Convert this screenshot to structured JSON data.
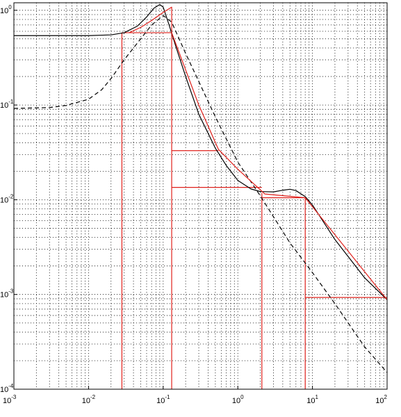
{
  "chart_data": {
    "type": "line",
    "title": "",
    "xlabel": "",
    "ylabel": "",
    "xscale": "log",
    "yscale": "log",
    "xlim": [
      0.001,
      100
    ],
    "ylim": [
      0.0001,
      1.2
    ],
    "grid": "on (dotted, major and minor)",
    "legend": "none",
    "x_ticks": [
      {
        "base": "10",
        "exp": "-3",
        "value": 0.001
      },
      {
        "base": "10",
        "exp": "-2",
        "value": 0.01
      },
      {
        "base": "10",
        "exp": "-1",
        "value": 0.1
      },
      {
        "base": "10",
        "exp": "0",
        "value": 1
      },
      {
        "base": "10",
        "exp": "1",
        "value": 10
      },
      {
        "base": "10",
        "exp": "2",
        "value": 100
      }
    ],
    "y_ticks": [
      {
        "base": "10",
        "exp": "0",
        "value": 1
      },
      {
        "base": "10",
        "exp": "-1",
        "value": 0.1
      },
      {
        "base": "10",
        "exp": "-2",
        "value": 0.01
      },
      {
        "base": "10",
        "exp": "-3",
        "value": 0.001
      },
      {
        "base": "10",
        "exp": "-4",
        "value": 0.0001
      }
    ],
    "series": [
      {
        "style": "solid",
        "color": "#000000",
        "points": [
          [
            0.001,
            0.54
          ],
          [
            0.005,
            0.54
          ],
          [
            0.01,
            0.54
          ],
          [
            0.02,
            0.55
          ],
          [
            0.03,
            0.58
          ],
          [
            0.045,
            0.68
          ],
          [
            0.06,
            0.85
          ],
          [
            0.075,
            1.05
          ],
          [
            0.09,
            1.15
          ],
          [
            0.1,
            1.08
          ],
          [
            0.12,
            0.7
          ],
          [
            0.15,
            0.4
          ],
          [
            0.2,
            0.2
          ],
          [
            0.3,
            0.08
          ],
          [
            0.5,
            0.035
          ],
          [
            0.7,
            0.023
          ],
          [
            1.0,
            0.016
          ],
          [
            1.5,
            0.013
          ],
          [
            2.0,
            0.0122
          ],
          [
            3.0,
            0.0121
          ],
          [
            4.0,
            0.0126
          ],
          [
            5.0,
            0.0129
          ],
          [
            6.0,
            0.0125
          ],
          [
            8.0,
            0.0108
          ],
          [
            10.0,
            0.0088
          ],
          [
            20.0,
            0.0038
          ],
          [
            50.0,
            0.0015
          ],
          [
            100.0,
            0.00088
          ]
        ]
      },
      {
        "style": "dashed",
        "color": "#000000",
        "points": [
          [
            0.001,
            0.092
          ],
          [
            0.003,
            0.094
          ],
          [
            0.005,
            0.099
          ],
          [
            0.01,
            0.115
          ],
          [
            0.015,
            0.145
          ],
          [
            0.02,
            0.19
          ],
          [
            0.03,
            0.3
          ],
          [
            0.05,
            0.5
          ],
          [
            0.07,
            0.7
          ],
          [
            0.1,
            0.88
          ],
          [
            0.13,
            0.75
          ],
          [
            0.2,
            0.35
          ],
          [
            0.5,
            0.075
          ],
          [
            1.0,
            0.025
          ],
          [
            2.0,
            0.011
          ],
          [
            5.0,
            0.0035
          ],
          [
            10.0,
            0.0017
          ],
          [
            20.0,
            0.0008
          ],
          [
            50.0,
            0.00028
          ],
          [
            100.0,
            0.00015
          ]
        ]
      },
      {
        "style": "solid",
        "color": "#e0201b",
        "points": [
          [
            0.035,
            0.58
          ],
          [
            0.05,
            0.66
          ],
          [
            0.07,
            0.78
          ],
          [
            0.1,
            0.95
          ],
          [
            0.13,
            1.08
          ],
          [
            0.13,
            0.58
          ],
          [
            0.3,
            0.1
          ],
          [
            0.55,
            0.034
          ],
          [
            1.0,
            0.021
          ],
          [
            2.3,
            0.0115
          ],
          [
            8.0,
            0.0105
          ],
          [
            100.0,
            0.00088
          ]
        ]
      }
    ],
    "reference_lines": [
      {
        "kind": "vertical",
        "x": 0.028,
        "y_from": 0.0001,
        "y_to": 0.58
      },
      {
        "kind": "vertical",
        "x": 0.13,
        "y_from": 0.0001,
        "y_to": 0.58
      },
      {
        "kind": "vertical",
        "x": 2.1,
        "y_from": 0.0001,
        "y_to": 0.0118
      },
      {
        "kind": "vertical",
        "x": 8.0,
        "y_from": 0.0001,
        "y_to": 0.0105
      },
      {
        "kind": "horizontal",
        "y": 0.58,
        "x_from": 0.028,
        "x_to": 0.13
      },
      {
        "kind": "horizontal",
        "y": 0.033,
        "x_from": 0.13,
        "x_to": 0.55
      },
      {
        "kind": "horizontal",
        "y": 0.0135,
        "x_from": 0.13,
        "x_to": 2.1
      },
      {
        "kind": "horizontal",
        "y": 0.0105,
        "x_from": 2.1,
        "x_to": 8.0
      },
      {
        "kind": "horizontal",
        "y": 0.00093,
        "x_from": 8.0,
        "x_to": 100.0
      }
    ]
  }
}
